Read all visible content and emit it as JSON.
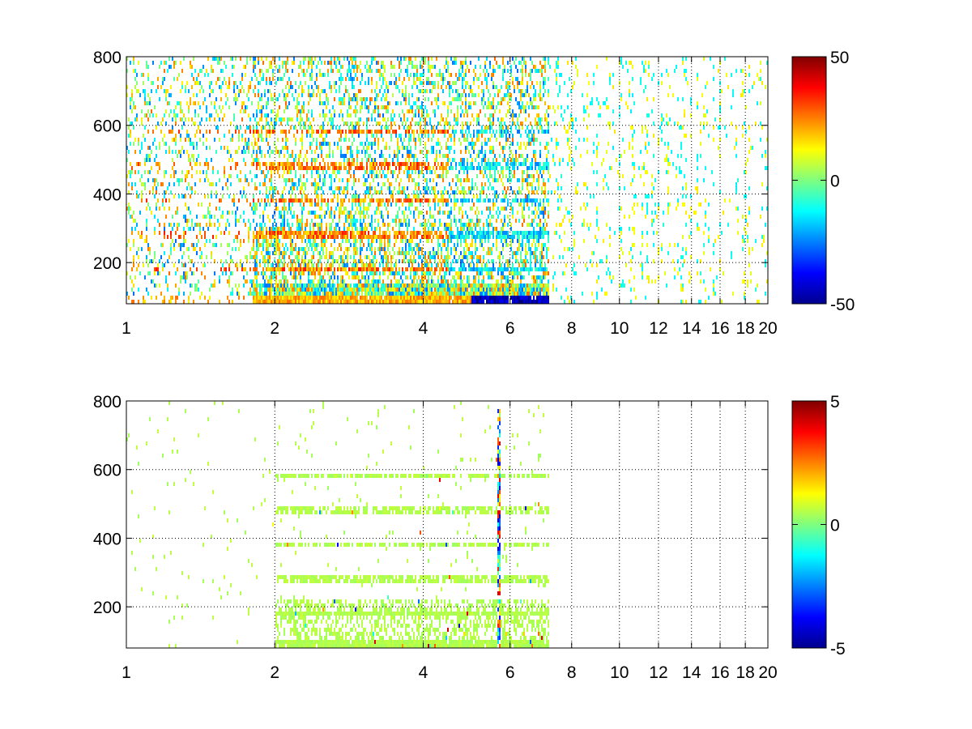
{
  "chart_data": [
    {
      "type": "heatmap",
      "title": "",
      "xlabel": "",
      "ylabel": "",
      "xlim": [
        1,
        20
      ],
      "ylim": [
        80,
        800
      ],
      "x_scale": "log",
      "x_ticks": [
        1,
        2,
        4,
        6,
        8,
        10,
        12,
        14,
        16,
        18,
        20
      ],
      "x_tick_labels": [
        "1",
        "2",
        "4",
        "6",
        "8",
        "10",
        "12",
        "14",
        "16",
        "18",
        "20"
      ],
      "y_ticks": [
        200,
        400,
        600,
        800
      ],
      "y_tick_labels": [
        "200",
        "400",
        "600",
        "800"
      ],
      "grid": true,
      "colormap": "jet",
      "color_range": [
        -50,
        50
      ],
      "colorbar_ticks": [
        50,
        0,
        -50
      ],
      "colorbar_tick_labels": [
        "50",
        "0",
        "-50"
      ],
      "blank_color": "#ffffff",
      "x_edge_of_dense_region": 7.2,
      "y_rows_with_elevated_values": [
        90,
        180,
        280,
        380,
        480,
        580
      ],
      "value_at_lowest_row_below_x_5": 20,
      "value_at_lowest_row_x_5_to_7": -45
    },
    {
      "type": "heatmap",
      "title": "",
      "xlabel": "",
      "ylabel": "",
      "xlim": [
        1,
        20
      ],
      "ylim": [
        80,
        800
      ],
      "x_scale": "log",
      "x_ticks": [
        1,
        2,
        4,
        6,
        8,
        10,
        12,
        14,
        16,
        18,
        20
      ],
      "x_tick_labels": [
        "1",
        "2",
        "4",
        "6",
        "8",
        "10",
        "12",
        "14",
        "16",
        "18",
        "20"
      ],
      "y_ticks": [
        200,
        400,
        600,
        800
      ],
      "y_tick_labels": [
        "200",
        "400",
        "600",
        "800"
      ],
      "grid": true,
      "colormap": "jet",
      "color_range": [
        -5,
        5
      ],
      "colorbar_ticks": [
        5,
        0,
        -5
      ],
      "colorbar_tick_labels": [
        "5",
        "0",
        "-5"
      ],
      "blank_color": "#ffffff",
      "x_edge_of_dense_region": 7.2,
      "dominant_value": 0.5,
      "outlier_column_x": 5.7
    }
  ]
}
